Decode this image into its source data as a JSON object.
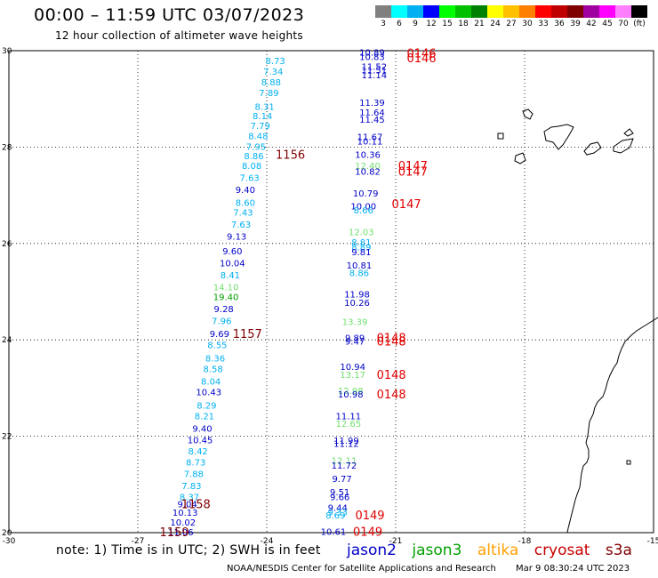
{
  "header": {
    "title": "00:00 – 11:59 UTC 03/07/2023",
    "subtitle": "12 hour collection of altimeter wave heights"
  },
  "color_legend": {
    "colors": [
      "#808080",
      "#00ffff",
      "#00b0f0",
      "#0000ff",
      "#00ff00",
      "#00c000",
      "#008000",
      "#ffff00",
      "#ffc000",
      "#ff8000",
      "#ff0000",
      "#c00000",
      "#800000",
      "#a000a0",
      "#ff00ff",
      "#ff80ff",
      "#000000"
    ],
    "ticks": [
      "3",
      "6",
      "9",
      "12",
      "15",
      "18",
      "21",
      "24",
      "27",
      "30",
      "33",
      "36",
      "39",
      "42",
      "45",
      "70",
      "(ft)"
    ]
  },
  "satellites": {
    "jason2": {
      "label": "jason2",
      "color": "#0000c8"
    },
    "jason3": {
      "label": "jason3",
      "color": "#00a000"
    },
    "altika": {
      "label": "altika",
      "color": "#ffa000"
    },
    "cryosat": {
      "label": "cryosat",
      "color": "#c80000"
    },
    "s3a": {
      "label": "s3a",
      "color": "#800000"
    }
  },
  "note": "note: 1) Time is in UTC; 2) SWH is in feet",
  "footer": {
    "credit": "NOAA/NESDIS Center for Satellite Applications and Research",
    "timestamp": "Mar  9 08:30:24 UTC 2023"
  },
  "chart_data": {
    "type": "scatter",
    "title": "00:00 – 11:59 UTC 03/07/2023",
    "subtitle": "12 hour collection of altimeter wave heights",
    "xlim": [
      -30,
      -15
    ],
    "ylim": [
      20,
      30
    ],
    "x_ticks": [
      "-30",
      "-27",
      "-24",
      "-21",
      "-18",
      "-15"
    ],
    "y_ticks": [
      "20",
      "22",
      "24",
      "26",
      "28",
      "30"
    ],
    "grid": true,
    "pass_labels": [
      {
        "x": -23.45,
        "y": 27.85,
        "text": "1156",
        "color": "#800000"
      },
      {
        "x": -24.45,
        "y": 24.13,
        "text": "1157",
        "color": "#800000"
      },
      {
        "x": -25.65,
        "y": 20.6,
        "text": "1158",
        "color": "#800000"
      },
      {
        "x": -26.15,
        "y": 20.02,
        "text": "1159",
        "color": "#800000"
      },
      {
        "x": -20.4,
        "y": 29.95,
        "text": "0146",
        "color": "#e00000"
      },
      {
        "x": -20.4,
        "y": 29.85,
        "text": "0146",
        "color": "#e00000"
      },
      {
        "x": -20.6,
        "y": 27.62,
        "text": "0147",
        "color": "#e00000"
      },
      {
        "x": -20.6,
        "y": 27.5,
        "text": "0147",
        "color": "#e00000"
      },
      {
        "x": -20.75,
        "y": 26.83,
        "text": "0147",
        "color": "#e00000"
      },
      {
        "x": -21.1,
        "y": 24.05,
        "text": "0148",
        "color": "#e00000"
      },
      {
        "x": -21.1,
        "y": 23.98,
        "text": "0148",
        "color": "#e00000"
      },
      {
        "x": -21.1,
        "y": 23.28,
        "text": "0148",
        "color": "#e00000"
      },
      {
        "x": -21.1,
        "y": 22.88,
        "text": "0148",
        "color": "#e00000"
      },
      {
        "x": -21.6,
        "y": 20.37,
        "text": "0149",
        "color": "#e00000"
      },
      {
        "x": -21.65,
        "y": 20.03,
        "text": "0149",
        "color": "#e00000"
      }
    ],
    "series": [
      {
        "points": [
          {
            "x": -23.8,
            "y": 29.8,
            "v": "8.73",
            "c": "#00b0f0"
          },
          {
            "x": -23.85,
            "y": 29.58,
            "v": "7.34",
            "c": "#00b0f0"
          },
          {
            "x": -23.9,
            "y": 29.35,
            "v": "8.88",
            "c": "#00b0f0"
          },
          {
            "x": -23.95,
            "y": 29.13,
            "v": "7.89",
            "c": "#00b0f0"
          },
          {
            "x": -24.05,
            "y": 28.85,
            "v": "8.31",
            "c": "#00b0f0"
          },
          {
            "x": -24.1,
            "y": 28.65,
            "v": "8.14",
            "c": "#00b0f0"
          },
          {
            "x": -24.15,
            "y": 28.45,
            "v": "7.79",
            "c": "#00b0f0"
          },
          {
            "x": -24.2,
            "y": 28.24,
            "v": "8.48",
            "c": "#00b0f0"
          },
          {
            "x": -24.25,
            "y": 28.02,
            "v": "7.95",
            "c": "#00b0f0"
          },
          {
            "x": -24.3,
            "y": 27.82,
            "v": "8.86",
            "c": "#00b0f0"
          },
          {
            "x": -24.35,
            "y": 27.62,
            "v": "8.08",
            "c": "#00b0f0"
          },
          {
            "x": -24.4,
            "y": 27.37,
            "v": "7.63",
            "c": "#00b0f0"
          },
          {
            "x": -24.5,
            "y": 27.12,
            "v": "9.40",
            "c": "#0000c8"
          },
          {
            "x": -24.5,
            "y": 26.85,
            "v": "8.60",
            "c": "#00b0f0"
          },
          {
            "x": -24.55,
            "y": 26.65,
            "v": "7.43",
            "c": "#00b0f0"
          },
          {
            "x": -24.6,
            "y": 26.4,
            "v": "7.63",
            "c": "#00b0f0"
          },
          {
            "x": -24.7,
            "y": 26.15,
            "v": "9.13",
            "c": "#0000c8"
          },
          {
            "x": -24.8,
            "y": 25.85,
            "v": "9.60",
            "c": "#0000c8"
          },
          {
            "x": -24.8,
            "y": 25.6,
            "v": "10.04",
            "c": "#0000c8"
          },
          {
            "x": -24.85,
            "y": 25.35,
            "v": "8.41",
            "c": "#00b0f0"
          },
          {
            "x": -24.95,
            "y": 25.1,
            "v": "14.10",
            "c": "#70e070"
          },
          {
            "x": -24.95,
            "y": 24.9,
            "v": "19.40",
            "c": "#00a000"
          },
          {
            "x": -25.0,
            "y": 24.65,
            "v": "9.28",
            "c": "#0000c8"
          },
          {
            "x": -25.05,
            "y": 24.4,
            "v": "7.96",
            "c": "#00b0f0"
          },
          {
            "x": -25.1,
            "y": 24.13,
            "v": "9.69",
            "c": "#0000c8"
          },
          {
            "x": -25.15,
            "y": 23.9,
            "v": "8.55",
            "c": "#00b0f0"
          },
          {
            "x": -25.2,
            "y": 23.63,
            "v": "8.36",
            "c": "#00b0f0"
          },
          {
            "x": -25.25,
            "y": 23.4,
            "v": "8.58",
            "c": "#00b0f0"
          },
          {
            "x": -25.3,
            "y": 23.15,
            "v": "8.04",
            "c": "#00b0f0"
          },
          {
            "x": -25.35,
            "y": 22.92,
            "v": "10.43",
            "c": "#0000c8"
          },
          {
            "x": -25.4,
            "y": 22.65,
            "v": "8.29",
            "c": "#00b0f0"
          },
          {
            "x": -25.45,
            "y": 22.43,
            "v": "8.21",
            "c": "#00b0f0"
          },
          {
            "x": -25.5,
            "y": 22.17,
            "v": "9.40",
            "c": "#0000c8"
          },
          {
            "x": -25.55,
            "y": 21.93,
            "v": "10.45",
            "c": "#0000c8"
          },
          {
            "x": -25.6,
            "y": 21.7,
            "v": "8.42",
            "c": "#00b0f0"
          },
          {
            "x": -25.65,
            "y": 21.47,
            "v": "8.73",
            "c": "#00b0f0"
          },
          {
            "x": -25.7,
            "y": 21.23,
            "v": "7.88",
            "c": "#00b0f0"
          },
          {
            "x": -25.75,
            "y": 20.98,
            "v": "7.83",
            "c": "#00b0f0"
          },
          {
            "x": -25.8,
            "y": 20.75,
            "v": "8.37",
            "c": "#00b0f0"
          },
          {
            "x": -25.85,
            "y": 20.6,
            "v": "9.04",
            "c": "#0000c8"
          },
          {
            "x": -25.9,
            "y": 20.42,
            "v": "10.13",
            "c": "#0000c8"
          },
          {
            "x": -25.95,
            "y": 20.22,
            "v": "10.02",
            "c": "#0000c8"
          },
          {
            "x": -26.0,
            "y": 20.02,
            "v": "11.06",
            "c": "#0000c8"
          }
        ]
      },
      {
        "points": [
          {
            "x": -21.55,
            "y": 29.97,
            "v": "10.89",
            "c": "#0000c8"
          },
          {
            "x": -21.55,
            "y": 29.88,
            "v": "10.83",
            "c": "#0000c8"
          },
          {
            "x": -21.5,
            "y": 29.68,
            "v": "11.52",
            "c": "#0000c8"
          },
          {
            "x": -21.5,
            "y": 29.6,
            "v": "11.51",
            "c": "#0000c8"
          },
          {
            "x": -21.5,
            "y": 29.5,
            "v": "11.14",
            "c": "#0000c8"
          },
          {
            "x": -21.55,
            "y": 28.93,
            "v": "11.39",
            "c": "#0000c8"
          },
          {
            "x": -21.55,
            "y": 28.73,
            "v": "11.64",
            "c": "#0000c8"
          },
          {
            "x": -21.55,
            "y": 28.58,
            "v": "11.45",
            "c": "#0000c8"
          },
          {
            "x": -21.6,
            "y": 28.22,
            "v": "11.67",
            "c": "#0000c8"
          },
          {
            "x": -21.6,
            "y": 28.13,
            "v": "10.11",
            "c": "#0000c8"
          },
          {
            "x": -21.65,
            "y": 27.85,
            "v": "10.36",
            "c": "#0000c8"
          },
          {
            "x": -21.65,
            "y": 27.62,
            "v": "12.40",
            "c": "#70e070"
          },
          {
            "x": -21.65,
            "y": 27.5,
            "v": "10.82",
            "c": "#0000c8"
          },
          {
            "x": -21.7,
            "y": 27.05,
            "v": "10.79",
            "c": "#0000c8"
          },
          {
            "x": -21.75,
            "y": 26.78,
            "v": "10.00",
            "c": "#0000c8"
          },
          {
            "x": -21.75,
            "y": 26.7,
            "v": "8.66",
            "c": "#00b0f0"
          },
          {
            "x": -21.8,
            "y": 26.25,
            "v": "12.03",
            "c": "#70e070"
          },
          {
            "x": -21.8,
            "y": 26.03,
            "v": "8.81",
            "c": "#00b0f0"
          },
          {
            "x": -21.8,
            "y": 25.93,
            "v": "8.89",
            "c": "#00b0f0"
          },
          {
            "x": -21.8,
            "y": 25.83,
            "v": "9.81",
            "c": "#0000c8"
          },
          {
            "x": -21.85,
            "y": 25.55,
            "v": "10.81",
            "c": "#0000c8"
          },
          {
            "x": -21.85,
            "y": 25.4,
            "v": "8.86",
            "c": "#00b0f0"
          },
          {
            "x": -21.9,
            "y": 24.95,
            "v": "11.98",
            "c": "#0000c8"
          },
          {
            "x": -21.9,
            "y": 24.78,
            "v": "10.26",
            "c": "#0000c8"
          },
          {
            "x": -21.95,
            "y": 24.38,
            "v": "13.39",
            "c": "#70e070"
          },
          {
            "x": -21.95,
            "y": 24.05,
            "v": "9.89",
            "c": "#0000c8"
          },
          {
            "x": -21.95,
            "y": 23.98,
            "v": "9.47",
            "c": "#0000c8"
          },
          {
            "x": -22.0,
            "y": 23.45,
            "v": "10.94",
            "c": "#0000c8"
          },
          {
            "x": -22.0,
            "y": 23.28,
            "v": "13.17",
            "c": "#70e070"
          },
          {
            "x": -22.05,
            "y": 22.95,
            "v": "12.98",
            "c": "#70e070"
          },
          {
            "x": -22.05,
            "y": 22.88,
            "v": "10.98",
            "c": "#0000c8"
          },
          {
            "x": -22.1,
            "y": 22.43,
            "v": "11.11",
            "c": "#0000c8"
          },
          {
            "x": -22.1,
            "y": 22.27,
            "v": "12.65",
            "c": "#70e070"
          },
          {
            "x": -22.15,
            "y": 21.92,
            "v": "11.99",
            "c": "#0000c8"
          },
          {
            "x": -22.15,
            "y": 21.85,
            "v": "11.12",
            "c": "#0000c8"
          },
          {
            "x": -22.2,
            "y": 21.5,
            "v": "12.11",
            "c": "#70e070"
          },
          {
            "x": -22.2,
            "y": 21.4,
            "v": "11.72",
            "c": "#0000c8"
          },
          {
            "x": -22.25,
            "y": 21.13,
            "v": "9.77",
            "c": "#0000c8"
          },
          {
            "x": -22.3,
            "y": 20.85,
            "v": "9.51",
            "c": "#0000c8"
          },
          {
            "x": -22.3,
            "y": 20.75,
            "v": "9.66",
            "c": "#0000c8"
          },
          {
            "x": -22.35,
            "y": 20.53,
            "v": "9.44",
            "c": "#0000c8"
          },
          {
            "x": -22.35,
            "y": 20.43,
            "v": "9.33",
            "c": "#00b0f0"
          },
          {
            "x": -22.4,
            "y": 20.37,
            "v": "8.69",
            "c": "#00b0f0"
          },
          {
            "x": -22.45,
            "y": 20.03,
            "v": "10.61",
            "c": "#0000c8"
          }
        ]
      }
    ]
  }
}
